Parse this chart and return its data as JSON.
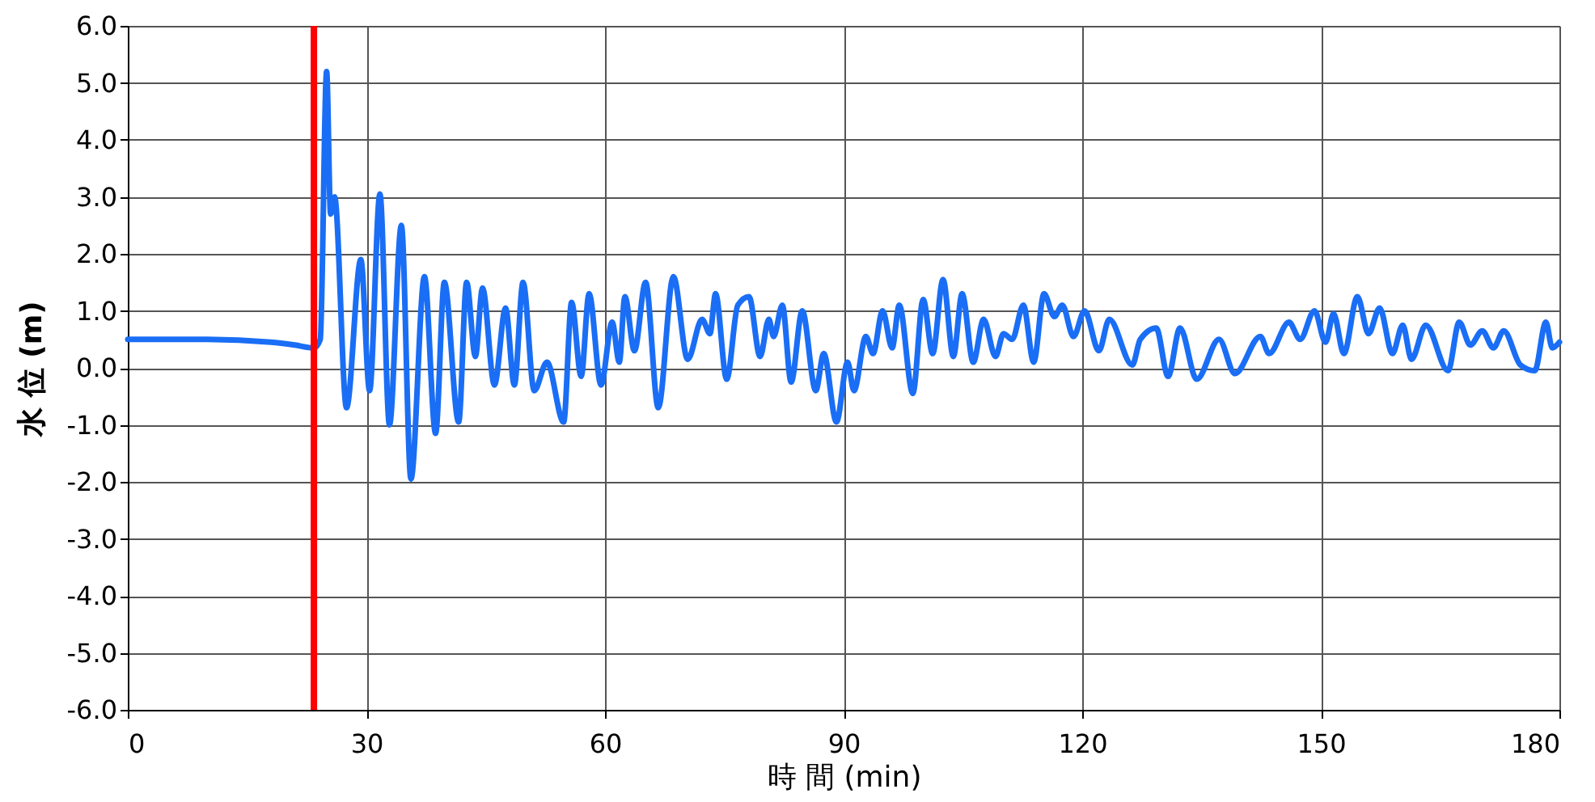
{
  "chart_data": {
    "type": "line",
    "xlabel": "時 間 (min)",
    "ylabel": "水 位 (m)",
    "xlim": [
      0,
      180
    ],
    "xticks": [
      0,
      30,
      60,
      90,
      120,
      150,
      180
    ],
    "ylim": [
      -6,
      6
    ],
    "yticks": [
      {
        "value": -6,
        "label": "-6.0"
      },
      {
        "value": -5,
        "label": "-5.0"
      },
      {
        "value": -4,
        "label": "-4.0"
      },
      {
        "value": -3,
        "label": "-3.0"
      },
      {
        "value": -2,
        "label": "-2.0"
      },
      {
        "value": -1,
        "label": "-1.0"
      },
      {
        "value": 0,
        "label": "0.0"
      },
      {
        "value": 1,
        "label": "1.0"
      },
      {
        "value": 2,
        "label": "2.0"
      },
      {
        "value": 3,
        "label": "3.0"
      },
      {
        "value": 4,
        "label": "4.0"
      },
      {
        "value": 5,
        "label": "5.0"
      },
      {
        "value": 6,
        "label": "6.0"
      }
    ],
    "grid": true,
    "marker": "none",
    "line_style": "solid",
    "ref_lines": [
      {
        "axis": "x",
        "value": 23.4,
        "color": "#ff0000"
      }
    ],
    "series": [
      {
        "color": "#1a6ef5",
        "x": [
          0,
          10,
          18,
          21,
          23.4,
          24.2,
          25.0,
          25.5,
          26.0,
          27.5,
          29.3,
          30.4,
          31.7,
          32.9,
          34.4,
          35.6,
          37.3,
          38.7,
          39.8,
          41.6,
          42.6,
          43.7,
          44.6,
          46.1,
          47.5,
          48.6,
          49.7,
          51.1,
          52.7,
          54.8,
          55.8,
          57.0,
          58.0,
          59.5,
          60.9,
          61.8,
          62.5,
          63.7,
          65.1,
          66.7,
          68.6,
          70.4,
          72.2,
          73.2,
          73.9,
          75.3,
          76.7,
          78.1,
          79.5,
          80.6,
          81.2,
          82.3,
          83.4,
          84.8,
          86.5,
          87.5,
          89.1,
          90.5,
          91.3,
          92.8,
          93.7,
          94.9,
          96.1,
          97.0,
          98.7,
          100.0,
          101.2,
          102.5,
          103.8,
          104.9,
          106.3,
          107.6,
          109.1,
          110.1,
          111.2,
          112.6,
          113.9,
          115.2,
          116.5,
          117.5,
          118.9,
          120.3,
          122.1,
          123.4,
          126.3,
          127.3,
          129.3,
          130.8,
          132.3,
          134.4,
          137.2,
          139.2,
          142.4,
          143.5,
          146.0,
          147.4,
          149.2,
          150.6,
          151.6,
          152.9,
          154.6,
          156.0,
          157.4,
          159.0,
          160.3,
          161.4,
          163.2,
          166.0,
          167.4,
          168.8,
          170.3,
          171.7,
          173.0,
          175.1,
          176.9,
          178.3,
          179.1,
          180
        ],
        "values": [
          0.5,
          0.5,
          0.45,
          0.4,
          0.35,
          0.5,
          5.2,
          2.7,
          3.0,
          -0.7,
          1.9,
          -0.4,
          3.05,
          -1.0,
          2.5,
          -1.95,
          1.6,
          -1.15,
          1.5,
          -0.95,
          1.5,
          0.2,
          1.4,
          -0.3,
          1.05,
          -0.3,
          1.5,
          -0.4,
          0.1,
          -0.95,
          1.15,
          -0.15,
          1.3,
          -0.3,
          0.8,
          0.1,
          1.25,
          0.3,
          1.5,
          -0.7,
          1.6,
          0.15,
          0.85,
          0.6,
          1.3,
          -0.2,
          1.1,
          1.25,
          0.2,
          0.85,
          0.55,
          1.1,
          -0.25,
          1.0,
          -0.4,
          0.25,
          -0.95,
          0.1,
          -0.4,
          0.55,
          0.25,
          1.0,
          0.35,
          1.1,
          -0.45,
          1.2,
          0.25,
          1.55,
          0.2,
          1.3,
          0.1,
          0.85,
          0.2,
          0.6,
          0.5,
          1.1,
          0.1,
          1.3,
          0.9,
          1.1,
          0.55,
          1.0,
          0.3,
          0.85,
          0.05,
          0.5,
          0.7,
          -0.15,
          0.7,
          -0.2,
          0.5,
          -0.1,
          0.55,
          0.25,
          0.8,
          0.5,
          1.0,
          0.45,
          0.95,
          0.25,
          1.25,
          0.6,
          1.05,
          0.25,
          0.75,
          0.15,
          0.75,
          -0.05,
          0.8,
          0.4,
          0.65,
          0.35,
          0.65,
          0.05,
          -0.05,
          0.8,
          0.35,
          0.45
        ]
      }
    ]
  }
}
